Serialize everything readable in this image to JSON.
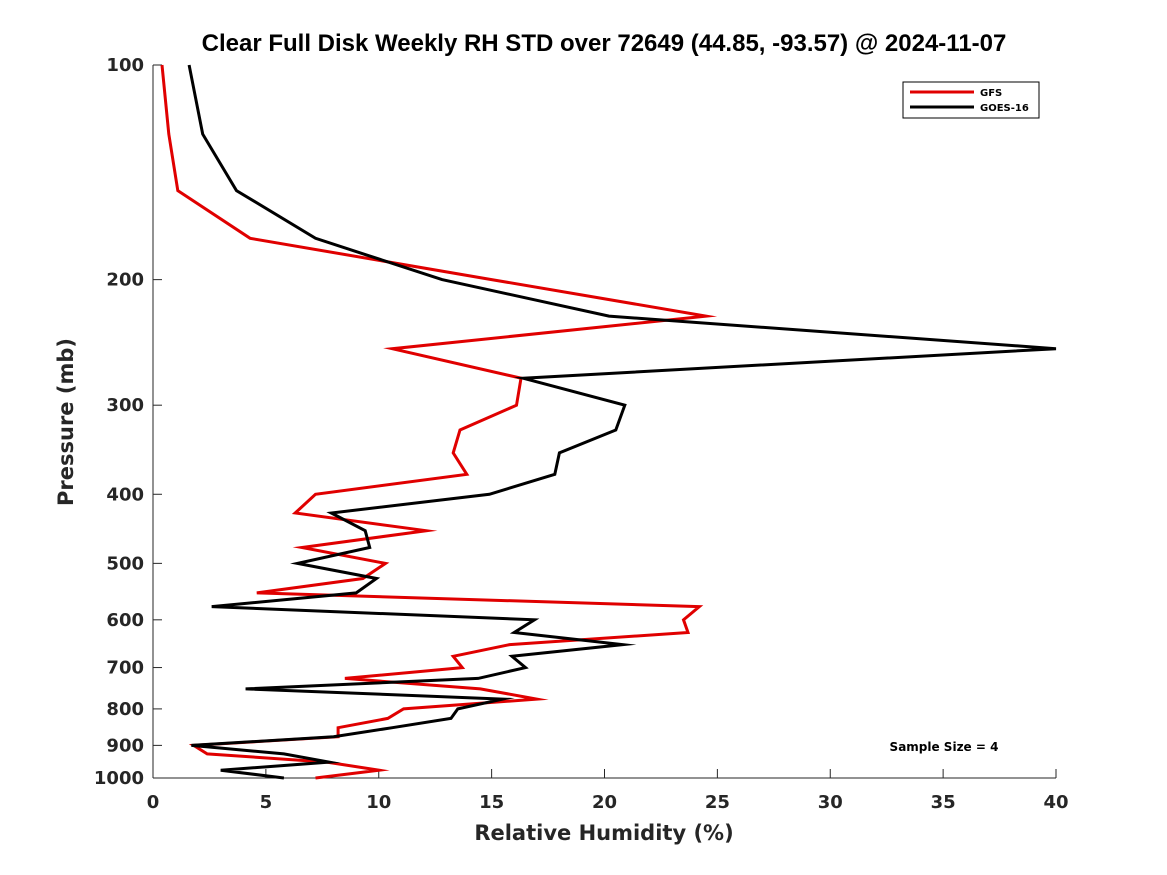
{
  "chart_data": {
    "type": "line",
    "title": "Clear Full Disk Weekly RH STD over 72649 (44.85, -93.57) @ 2024-11-07",
    "xlabel": "Relative Humidity (%)",
    "ylabel": "Pressure (mb)",
    "xlim": [
      0,
      40
    ],
    "ylim": [
      100,
      1000
    ],
    "y_scale": "log",
    "y_reversed": true,
    "x_ticks": [
      0,
      5,
      10,
      15,
      20,
      25,
      30,
      35,
      40
    ],
    "y_ticks": [
      100,
      200,
      300,
      400,
      500,
      600,
      700,
      800,
      900,
      1000
    ],
    "grid": false,
    "legend": "top-right",
    "annotation": "Sample Size = 4",
    "series": [
      {
        "name": "GFS",
        "color": "#e00000",
        "points": [
          [
            0.4,
            100
          ],
          [
            0.7,
            125
          ],
          [
            1.1,
            150
          ],
          [
            4.3,
            175
          ],
          [
            15.0,
            200
          ],
          [
            24.5,
            225
          ],
          [
            10.6,
            250
          ],
          [
            16.3,
            275
          ],
          [
            16.1,
            300
          ],
          [
            13.6,
            325
          ],
          [
            13.3,
            350
          ],
          [
            13.9,
            375
          ],
          [
            7.2,
            400
          ],
          [
            6.3,
            425
          ],
          [
            12.1,
            450
          ],
          [
            6.6,
            475
          ],
          [
            10.3,
            500
          ],
          [
            9.3,
            525
          ],
          [
            4.6,
            550
          ],
          [
            24.2,
            575
          ],
          [
            23.5,
            600
          ],
          [
            23.7,
            625
          ],
          [
            15.8,
            650
          ],
          [
            13.3,
            675
          ],
          [
            13.7,
            700
          ],
          [
            8.5,
            725
          ],
          [
            14.5,
            750
          ],
          [
            17.0,
            775
          ],
          [
            11.1,
            800
          ],
          [
            10.4,
            825
          ],
          [
            8.2,
            850
          ],
          [
            8.2,
            875
          ],
          [
            1.8,
            900
          ],
          [
            2.4,
            925
          ],
          [
            7.7,
            950
          ],
          [
            10.0,
            975
          ],
          [
            7.2,
            1000
          ]
        ]
      },
      {
        "name": "GOES-16",
        "color": "#000000",
        "points": [
          [
            1.6,
            100
          ],
          [
            2.2,
            125
          ],
          [
            3.7,
            150
          ],
          [
            7.2,
            175
          ],
          [
            12.8,
            200
          ],
          [
            20.2,
            225
          ],
          [
            40.0,
            250
          ],
          [
            16.4,
            275
          ],
          [
            20.9,
            300
          ],
          [
            20.5,
            325
          ],
          [
            18.0,
            350
          ],
          [
            17.8,
            375
          ],
          [
            14.9,
            400
          ],
          [
            7.9,
            425
          ],
          [
            9.4,
            450
          ],
          [
            9.6,
            475
          ],
          [
            6.4,
            500
          ],
          [
            9.9,
            525
          ],
          [
            9.0,
            550
          ],
          [
            2.6,
            575
          ],
          [
            16.9,
            600
          ],
          [
            16.0,
            625
          ],
          [
            20.8,
            650
          ],
          [
            15.9,
            675
          ],
          [
            16.5,
            700
          ],
          [
            14.4,
            725
          ],
          [
            4.1,
            750
          ],
          [
            15.5,
            775
          ],
          [
            13.5,
            800
          ],
          [
            13.2,
            825
          ],
          [
            10.6,
            850
          ],
          [
            8.0,
            875
          ],
          [
            1.7,
            900
          ],
          [
            5.8,
            925
          ],
          [
            7.8,
            950
          ],
          [
            3.0,
            975
          ],
          [
            5.8,
            1000
          ]
        ]
      }
    ]
  }
}
